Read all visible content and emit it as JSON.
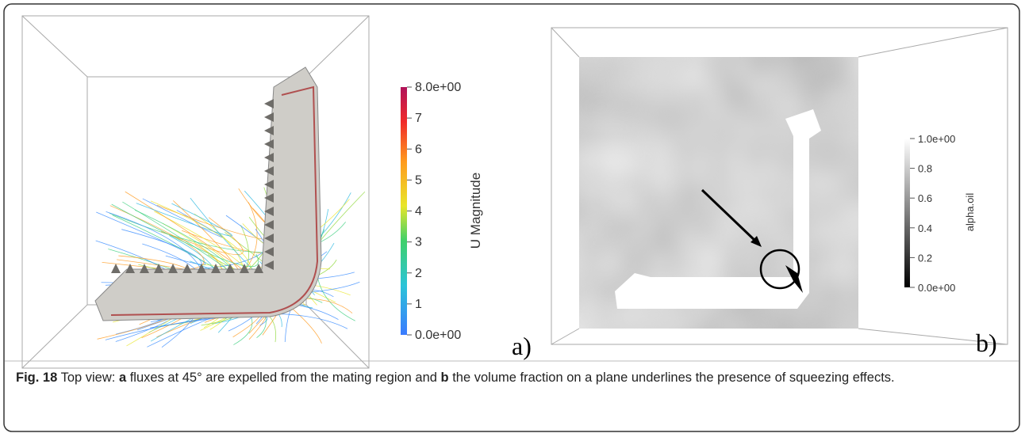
{
  "figure": {
    "panels": [
      {
        "tag": "a)",
        "colorbar": {
          "title": "U Magnitude",
          "ticks": [
            {
              "value": 0,
              "label": "0.0e+00"
            },
            {
              "value": 1,
              "label": "1"
            },
            {
              "value": 2,
              "label": "2"
            },
            {
              "value": 3,
              "label": "3"
            },
            {
              "value": 4,
              "label": "4"
            },
            {
              "value": 5,
              "label": "5"
            },
            {
              "value": 6,
              "label": "6"
            },
            {
              "value": 7,
              "label": "7"
            },
            {
              "value": 8,
              "label": "8.0e+00"
            }
          ]
        }
      },
      {
        "tag": "b)",
        "colorbar": {
          "title": "alpha.oil",
          "ticks": [
            {
              "value": 0,
              "label": "0.0e+00"
            },
            {
              "value": 0.2,
              "label": "0.2"
            },
            {
              "value": 0.4,
              "label": "0.4"
            },
            {
              "value": 0.6,
              "label": "0.6"
            },
            {
              "value": 0.8,
              "label": "0.8"
            },
            {
              "value": 1,
              "label": "1.0e+00"
            }
          ]
        }
      }
    ],
    "caption": {
      "label": "Fig. 18",
      "parts": [
        "Top view: ",
        "a",
        " fluxes at 45° are expelled from the mating region and ",
        "b",
        " the volume fraction on a plane underlines the presence of squeezing effects."
      ]
    }
  }
}
